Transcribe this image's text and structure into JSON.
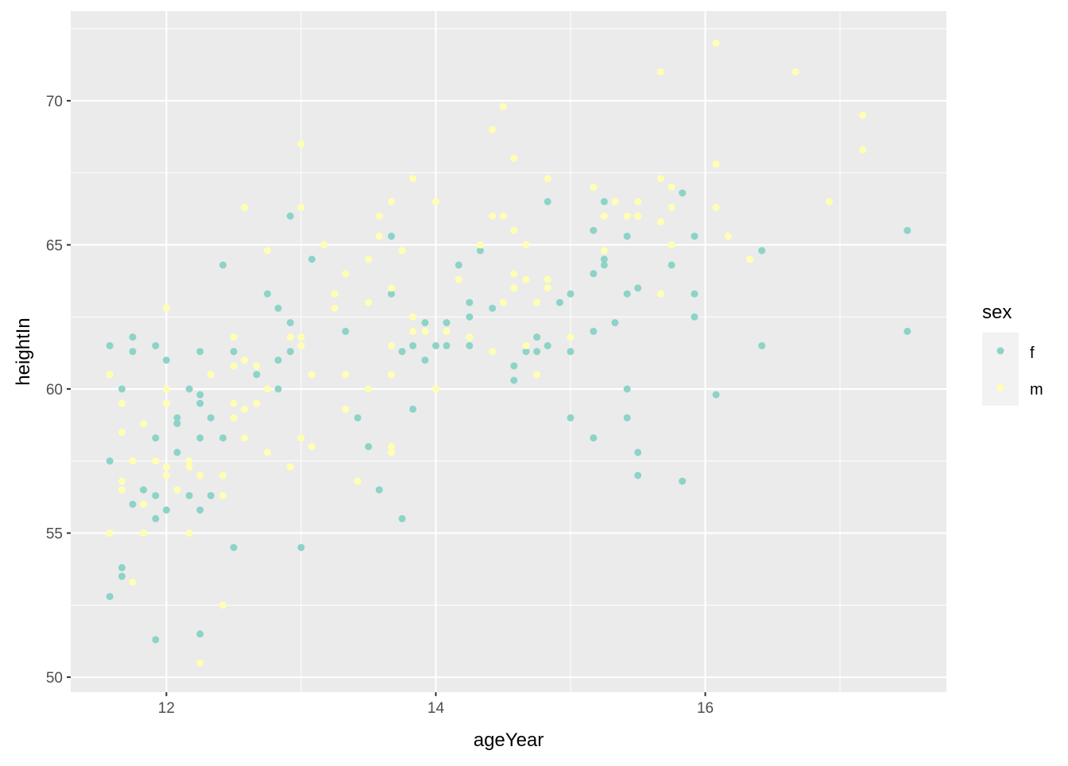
{
  "chart_data": {
    "type": "scatter",
    "title": "",
    "xlabel": "ageYear",
    "ylabel": "heightIn",
    "xlim": [
      11.29,
      17.79
    ],
    "ylim": [
      49.48,
      73.11
    ],
    "x_ticks": [
      12,
      14,
      16
    ],
    "y_ticks": [
      50,
      55,
      60,
      65,
      70
    ],
    "grid": true,
    "legend": {
      "title": "sex",
      "placement": "right",
      "entries": [
        "f",
        "m"
      ]
    },
    "series": [
      {
        "name": "f",
        "color": "#8DD3C7",
        "points": [
          [
            11.58,
            61.5
          ],
          [
            11.58,
            57.5
          ],
          [
            11.58,
            52.8
          ],
          [
            11.67,
            60
          ],
          [
            11.67,
            53.8
          ],
          [
            11.67,
            53.5
          ],
          [
            11.75,
            61.8
          ],
          [
            11.75,
            61.3
          ],
          [
            11.75,
            56
          ],
          [
            11.83,
            56.5
          ],
          [
            11.92,
            61.5
          ],
          [
            11.92,
            58.3
          ],
          [
            11.92,
            56.3
          ],
          [
            11.92,
            55.5
          ],
          [
            11.92,
            51.3
          ],
          [
            12,
            61
          ],
          [
            12,
            55.8
          ],
          [
            12.08,
            59
          ],
          [
            12.08,
            58.8
          ],
          [
            12.08,
            57.8
          ],
          [
            12.17,
            60
          ],
          [
            12.17,
            56.3
          ],
          [
            12.25,
            61.3
          ],
          [
            12.25,
            59.8
          ],
          [
            12.25,
            59.5
          ],
          [
            12.25,
            58.3
          ],
          [
            12.25,
            55.8
          ],
          [
            12.25,
            51.5
          ],
          [
            12.33,
            59
          ],
          [
            12.33,
            56.3
          ],
          [
            12.42,
            64.3
          ],
          [
            12.42,
            58.3
          ],
          [
            12.5,
            61.3
          ],
          [
            12.5,
            54.5
          ],
          [
            12.67,
            60.5
          ],
          [
            12.75,
            63.3
          ],
          [
            12.83,
            62.8
          ],
          [
            12.83,
            61
          ],
          [
            12.83,
            60
          ],
          [
            12.92,
            66
          ],
          [
            12.92,
            62.3
          ],
          [
            12.92,
            61.3
          ],
          [
            13,
            54.5
          ],
          [
            13.08,
            64.5
          ],
          [
            13.33,
            62
          ],
          [
            13.42,
            59
          ],
          [
            13.5,
            58
          ],
          [
            13.58,
            56.5
          ],
          [
            13.67,
            65.3
          ],
          [
            13.67,
            63.3
          ],
          [
            13.75,
            61.3
          ],
          [
            13.75,
            55.5
          ],
          [
            13.83,
            61.5
          ],
          [
            13.83,
            59.3
          ],
          [
            13.92,
            62.3
          ],
          [
            13.92,
            61
          ],
          [
            14,
            61.5
          ],
          [
            14.08,
            62.3
          ],
          [
            14.08,
            61.5
          ],
          [
            14.17,
            64.3
          ],
          [
            14.25,
            63
          ],
          [
            14.25,
            62.5
          ],
          [
            14.25,
            61.5
          ],
          [
            14.33,
            64.8
          ],
          [
            14.42,
            62.8
          ],
          [
            14.58,
            60.8
          ],
          [
            14.58,
            60.3
          ],
          [
            14.67,
            61.3
          ],
          [
            14.75,
            61.8
          ],
          [
            14.75,
            61.3
          ],
          [
            14.83,
            66.5
          ],
          [
            14.83,
            61.5
          ],
          [
            14.92,
            63
          ],
          [
            15,
            63.3
          ],
          [
            15,
            61.3
          ],
          [
            15,
            59
          ],
          [
            15.17,
            65.5
          ],
          [
            15.17,
            64
          ],
          [
            15.17,
            62
          ],
          [
            15.17,
            58.3
          ],
          [
            15.25,
            66.5
          ],
          [
            15.25,
            64.5
          ],
          [
            15.25,
            64.3
          ],
          [
            15.33,
            62.3
          ],
          [
            15.42,
            65.3
          ],
          [
            15.42,
            63.3
          ],
          [
            15.42,
            60
          ],
          [
            15.42,
            59
          ],
          [
            15.5,
            63.5
          ],
          [
            15.5,
            57.8
          ],
          [
            15.5,
            57
          ],
          [
            15.75,
            64.3
          ],
          [
            15.83,
            66.8
          ],
          [
            15.83,
            56.8
          ],
          [
            15.92,
            65.3
          ],
          [
            15.92,
            63.3
          ],
          [
            15.92,
            62.5
          ],
          [
            16.08,
            59.8
          ],
          [
            16.42,
            64.8
          ],
          [
            16.42,
            61.5
          ],
          [
            17.5,
            65.5
          ],
          [
            17.5,
            62
          ]
        ]
      },
      {
        "name": "m",
        "color": "#FFFFB3",
        "points": [
          [
            11.58,
            60.5
          ],
          [
            11.58,
            55
          ],
          [
            11.67,
            59.5
          ],
          [
            11.67,
            58.5
          ],
          [
            11.67,
            56.8
          ],
          [
            11.67,
            56.5
          ],
          [
            11.75,
            57.5
          ],
          [
            11.75,
            53.3
          ],
          [
            11.83,
            58.8
          ],
          [
            11.83,
            56
          ],
          [
            11.83,
            55
          ],
          [
            11.92,
            57.5
          ],
          [
            12,
            62.8
          ],
          [
            12,
            60
          ],
          [
            12,
            59.5
          ],
          [
            12,
            57.3
          ],
          [
            12,
            57
          ],
          [
            12.08,
            56.5
          ],
          [
            12.17,
            57.5
          ],
          [
            12.17,
            57.3
          ],
          [
            12.17,
            55
          ],
          [
            12.25,
            57
          ],
          [
            12.25,
            50.5
          ],
          [
            12.33,
            60.5
          ],
          [
            12.42,
            57
          ],
          [
            12.42,
            56.3
          ],
          [
            12.42,
            52.5
          ],
          [
            12.5,
            61.8
          ],
          [
            12.5,
            60.8
          ],
          [
            12.5,
            59.5
          ],
          [
            12.5,
            59
          ],
          [
            12.58,
            66.3
          ],
          [
            12.58,
            61
          ],
          [
            12.58,
            59.3
          ],
          [
            12.58,
            58.3
          ],
          [
            12.67,
            60.8
          ],
          [
            12.67,
            59.5
          ],
          [
            12.75,
            64.8
          ],
          [
            12.75,
            60
          ],
          [
            12.75,
            57.8
          ],
          [
            12.92,
            61.8
          ],
          [
            12.92,
            57.3
          ],
          [
            13,
            68.5
          ],
          [
            13,
            66.3
          ],
          [
            13,
            61.8
          ],
          [
            13,
            61.5
          ],
          [
            13,
            58.3
          ],
          [
            13.08,
            60.5
          ],
          [
            13.08,
            58
          ],
          [
            13.17,
            65
          ],
          [
            13.25,
            63.3
          ],
          [
            13.25,
            62.8
          ],
          [
            13.33,
            64
          ],
          [
            13.33,
            60.5
          ],
          [
            13.33,
            59.3
          ],
          [
            13.42,
            56.8
          ],
          [
            13.5,
            64.5
          ],
          [
            13.5,
            63
          ],
          [
            13.5,
            60
          ],
          [
            13.58,
            66
          ],
          [
            13.58,
            65.3
          ],
          [
            13.67,
            66.5
          ],
          [
            13.67,
            63.5
          ],
          [
            13.67,
            61.5
          ],
          [
            13.67,
            60.5
          ],
          [
            13.67,
            58
          ],
          [
            13.67,
            57.8
          ],
          [
            13.75,
            64.8
          ],
          [
            13.83,
            67.3
          ],
          [
            13.83,
            62.5
          ],
          [
            13.83,
            62
          ],
          [
            13.92,
            62
          ],
          [
            14,
            66.5
          ],
          [
            14,
            60
          ],
          [
            14.08,
            62
          ],
          [
            14.17,
            63.8
          ],
          [
            14.25,
            61.8
          ],
          [
            14.33,
            65
          ],
          [
            14.42,
            69
          ],
          [
            14.42,
            66
          ],
          [
            14.42,
            61.3
          ],
          [
            14.5,
            69.8
          ],
          [
            14.5,
            66
          ],
          [
            14.5,
            63
          ],
          [
            14.58,
            68
          ],
          [
            14.58,
            65.5
          ],
          [
            14.58,
            64
          ],
          [
            14.58,
            63.5
          ],
          [
            14.67,
            65
          ],
          [
            14.67,
            63.8
          ],
          [
            14.67,
            61.5
          ],
          [
            14.75,
            63
          ],
          [
            14.75,
            60.5
          ],
          [
            14.83,
            67.3
          ],
          [
            14.83,
            63.8
          ],
          [
            14.83,
            63.5
          ],
          [
            15,
            61.8
          ],
          [
            15.17,
            67
          ],
          [
            15.25,
            66
          ],
          [
            15.25,
            64.8
          ],
          [
            15.33,
            66.5
          ],
          [
            15.42,
            66
          ],
          [
            15.5,
            66.5
          ],
          [
            15.5,
            66
          ],
          [
            15.67,
            71
          ],
          [
            15.67,
            67.3
          ],
          [
            15.67,
            65.8
          ],
          [
            15.67,
            63.3
          ],
          [
            15.75,
            67
          ],
          [
            15.75,
            66.3
          ],
          [
            15.75,
            65
          ],
          [
            16.08,
            72
          ],
          [
            16.08,
            67.8
          ],
          [
            16.08,
            66.3
          ],
          [
            16.17,
            65.3
          ],
          [
            16.33,
            64.5
          ],
          [
            16.67,
            71
          ],
          [
            16.92,
            66.5
          ],
          [
            17.17,
            69.5
          ],
          [
            17.17,
            68.3
          ]
        ]
      }
    ]
  }
}
